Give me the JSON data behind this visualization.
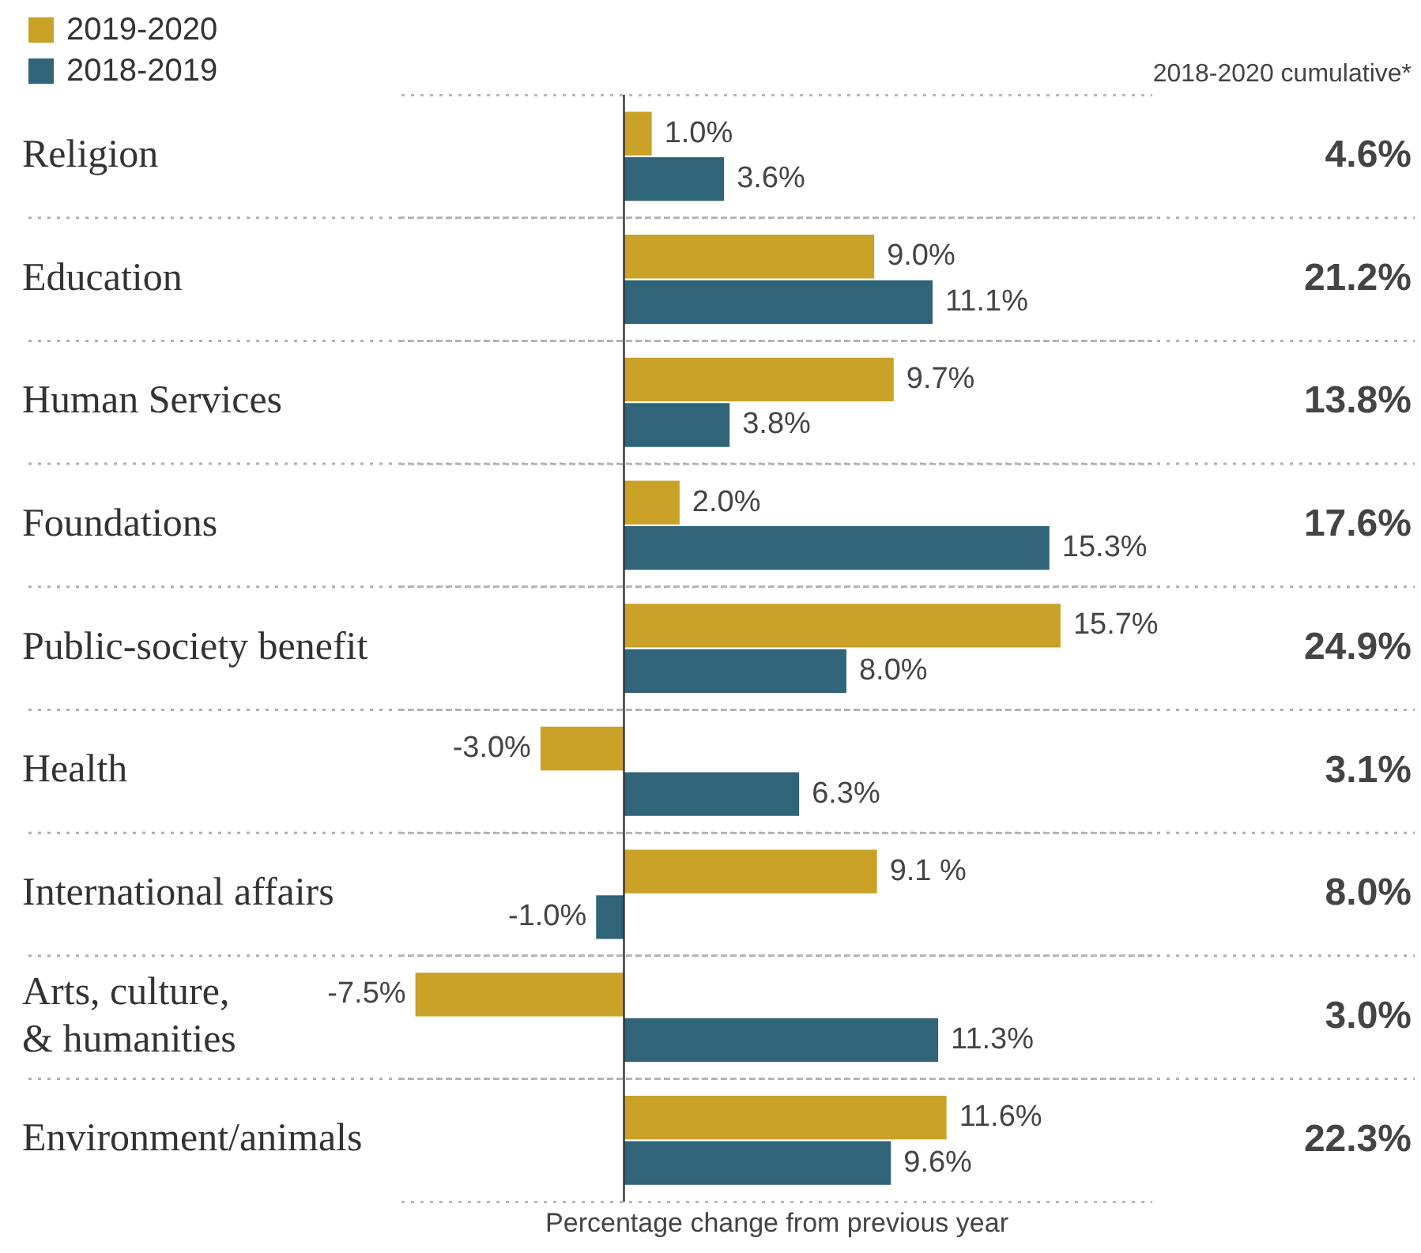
{
  "chart_data": {
    "type": "bar",
    "orientation": "horizontal",
    "xlabel": "Percentage change from previous year",
    "categories": [
      "Religion",
      "Education",
      "Human Services",
      "Foundations",
      "Public-society benefit",
      "Health",
      "International affairs",
      "Arts, culture, & humanities",
      "Environment/animals"
    ],
    "series": [
      {
        "name": "2019-2020",
        "color": "#c9a227",
        "values": [
          1.0,
          9.0,
          9.7,
          2.0,
          15.7,
          -3.0,
          9.1,
          -7.5,
          11.6
        ],
        "value_labels": [
          "1.0%",
          "9.0%",
          "9.7%",
          "2.0%",
          "15.7%",
          "-3.0%",
          "9.1 %",
          "-7.5%",
          "11.6%"
        ]
      },
      {
        "name": "2018-2019",
        "color": "#2f6479",
        "values": [
          3.6,
          11.1,
          3.8,
          15.3,
          8.0,
          6.3,
          -1.0,
          11.3,
          9.6
        ],
        "value_labels": [
          "3.6%",
          "11.1%",
          "3.8%",
          "15.3%",
          "8.0%",
          "6.3%",
          "-1.0%",
          "11.3%",
          "9.6%"
        ]
      }
    ],
    "xlim": [
      -8,
      19
    ],
    "tick_labels": "y",
    "grid": "y",
    "legend": "top left",
    "annotations": [
      "2018-2020 cumulative*",
      "4.6%",
      "21.2%",
      "13.8%",
      "17.6%",
      "24.9%",
      "3.1%",
      "8.0%",
      "3.0%",
      "22.3%"
    ]
  }
}
